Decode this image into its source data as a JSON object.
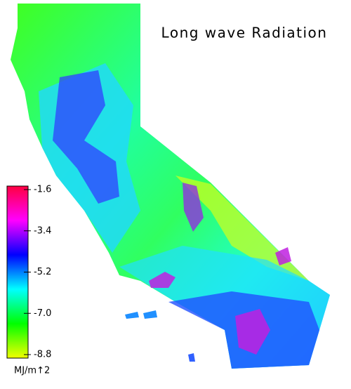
{
  "title": "Long wave Radiation",
  "colorbar": {
    "label": "MJ/m↑2",
    "lim": [
      -8.8,
      -1.6
    ],
    "ticks": [
      -1.6,
      -3.4,
      -5.2,
      {
        "value": -7.0,
        "label": "-7.0"
      },
      -8.8
    ],
    "colors": [
      "#f0ff00",
      "#00ff00",
      "#00ffff",
      "#0000ff",
      "#ff00ff",
      "#ff0040"
    ]
  }
}
